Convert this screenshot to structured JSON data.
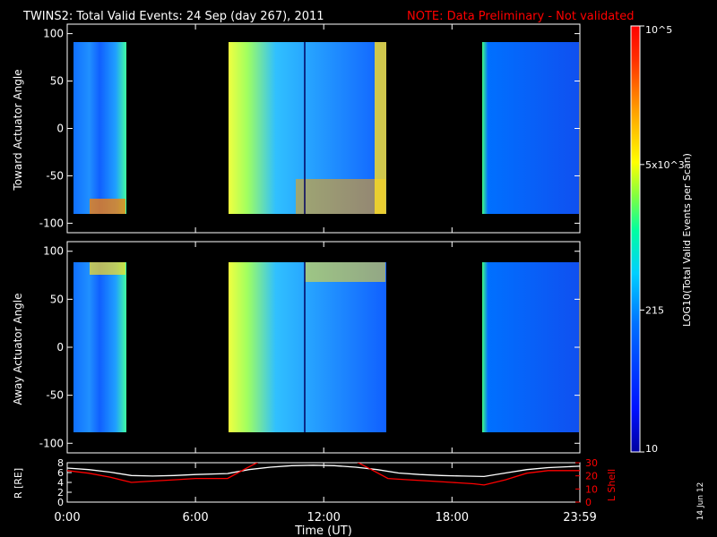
{
  "header": {
    "title": "TWINS2: Total Valid Events: 24 Sep (day 267), 2011",
    "note": "NOTE: Data Preliminary - Not validated"
  },
  "stamp": "14 Jun 12",
  "colors": {
    "background": "#000000",
    "foreground": "#ffffff",
    "note": "#ff0000",
    "lshell_line": "#ff0000",
    "r_line": "#ffffff"
  },
  "chart_data": [
    {
      "type": "heatmap",
      "panel": "top",
      "ylabel": "Toward Actuator Angle",
      "ylim": [
        -110,
        110
      ],
      "y_ticks": [
        "100",
        "50",
        "0",
        "-50",
        "-100"
      ],
      "data_y_range": [
        -88,
        90
      ],
      "x_ticks_hours": [
        0,
        6,
        12,
        18,
        23.983
      ],
      "data_gaps_hours": [
        [
          2.65,
          7.75
        ],
        [
          14.8,
          19.55
        ]
      ],
      "notes": "Spectrogram of log10 total valid events vs time and angle; low counts mostly blue, elevated (yellow/orange) near -85 deg early in day and around 7.8-8.6 h and 14.4-14.8 h."
    },
    {
      "type": "heatmap",
      "panel": "middle",
      "ylabel": "Away Actuator Angle",
      "ylim": [
        -110,
        110
      ],
      "y_ticks": [
        "100",
        "50",
        "0",
        "-50",
        "-100"
      ],
      "data_y_range": [
        -90,
        90
      ],
      "x_ticks_hours": [
        0,
        6,
        12,
        18,
        23.983
      ],
      "data_gaps_hours": [
        [
          2.65,
          7.75
        ],
        [
          14.8,
          19.55
        ]
      ]
    },
    {
      "type": "colorbar",
      "label": "LOG10(Total Valid Events per Scan)",
      "scale": "log",
      "range": [
        10,
        100000
      ],
      "tick_labels": [
        "10",
        "215",
        "5x10^3",
        "10^5"
      ],
      "tick_values": [
        10,
        215,
        5000,
        100000
      ]
    },
    {
      "type": "line",
      "panel": "bottom",
      "xlabel": "Time (UT)",
      "x_tick_labels": [
        "0:00",
        "6:00",
        "12:00",
        "18:00",
        "23:59"
      ],
      "xlim_hours": [
        0,
        23.983
      ],
      "left_axis": {
        "label": "R [RE]",
        "ylim": [
          0,
          8
        ],
        "ticks": [
          "8",
          "6",
          "4",
          "2",
          "0"
        ]
      },
      "right_axis": {
        "label": "L Shell",
        "ylim": [
          0,
          30
        ],
        "ticks": [
          "30",
          "20",
          "10",
          "0"
        ]
      },
      "series": [
        {
          "name": "R [RE]",
          "axis": "left",
          "color": "#ffffff",
          "x": [
            0,
            1,
            2,
            3,
            4,
            5,
            6,
            7.5,
            8.5,
            9.5,
            10.5,
            11.5,
            12.5,
            13.5,
            14.5,
            15.5,
            16.5,
            17.5,
            18.5,
            19.5,
            20.5,
            21.5,
            22.5,
            23.983
          ],
          "y": [
            6.9,
            6.6,
            6.1,
            5.4,
            5.3,
            5.4,
            5.6,
            5.8,
            6.6,
            7.1,
            7.4,
            7.5,
            7.4,
            7.1,
            6.6,
            5.9,
            5.6,
            5.4,
            5.3,
            5.2,
            5.9,
            6.6,
            7.0,
            7.3
          ]
        },
        {
          "name": "L Shell",
          "axis": "right",
          "color": "#ff0000",
          "x": [
            0,
            1,
            2,
            3,
            4,
            5,
            6,
            7.5,
            8.4,
            9.0,
            13.5,
            14.2,
            15.0,
            16.0,
            17.0,
            18.0,
            19.0,
            19.5,
            20.5,
            21.5,
            22.5,
            23.983
          ],
          "y": [
            24,
            22,
            19,
            15,
            16,
            17,
            18,
            18,
            26,
            31,
            31,
            25,
            18,
            17,
            16,
            15,
            14,
            13,
            17,
            22,
            24,
            24
          ]
        }
      ]
    }
  ]
}
